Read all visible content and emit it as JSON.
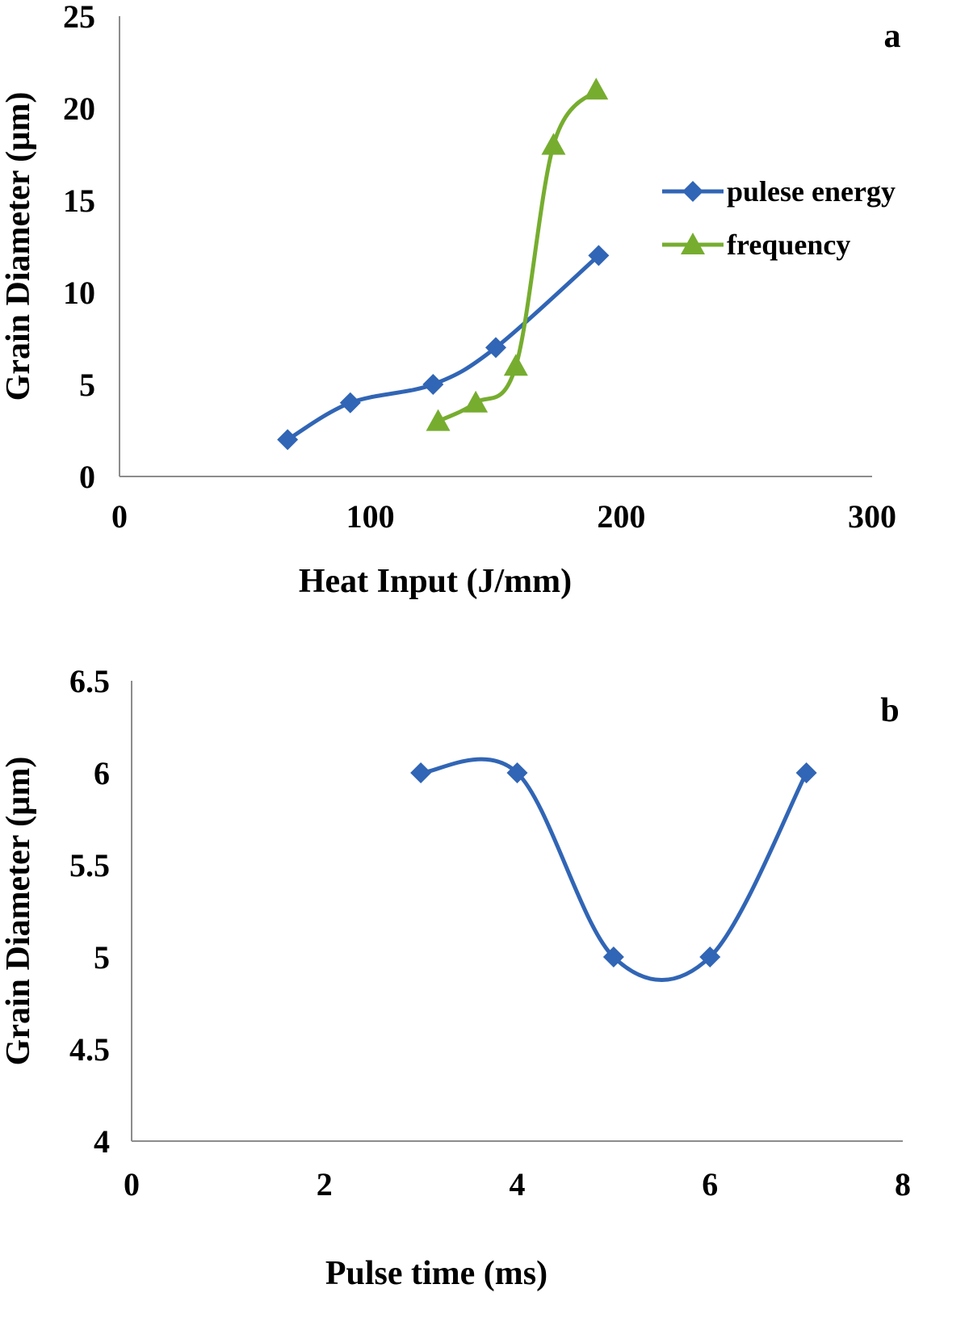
{
  "chart_data": [
    {
      "type": "line",
      "panel_label": "a",
      "xlabel": "Heat Input  (J/mm)",
      "ylabel": "Grain Diameter (µm)",
      "xlim": [
        0,
        300
      ],
      "ylim": [
        0,
        25
      ],
      "xticks": [
        0,
        100,
        200,
        300
      ],
      "yticks": [
        0,
        5,
        10,
        15,
        20,
        25
      ],
      "grid": false,
      "legend_position": "right",
      "series": [
        {
          "name": "pulese energy",
          "color": "#3165b5",
          "marker": "diamond",
          "points": [
            [
              67,
              2
            ],
            [
              92,
              4
            ],
            [
              125,
              5
            ],
            [
              150,
              7
            ],
            [
              191,
              12
            ]
          ]
        },
        {
          "name": "frequency",
          "color": "#76ad2f",
          "marker": "triangle",
          "points": [
            [
              127,
              3
            ],
            [
              142,
              4
            ],
            [
              158,
              6
            ],
            [
              173,
              18
            ],
            [
              190,
              21
            ]
          ]
        }
      ]
    },
    {
      "type": "line",
      "panel_label": "b",
      "xlabel": "Pulse time (ms)",
      "ylabel": "Grain Diameter (µm)",
      "xlim": [
        0,
        8
      ],
      "ylim": [
        4,
        6.5
      ],
      "xticks": [
        0,
        2,
        4,
        6,
        8
      ],
      "yticks": [
        4,
        4.5,
        5,
        5.5,
        6,
        6.5
      ],
      "grid": false,
      "series": [
        {
          "name": "",
          "color": "#3165b5",
          "marker": "diamond",
          "points": [
            [
              3,
              6
            ],
            [
              4,
              6
            ],
            [
              5,
              5
            ],
            [
              6,
              5
            ],
            [
              7,
              6
            ]
          ]
        }
      ]
    }
  ]
}
